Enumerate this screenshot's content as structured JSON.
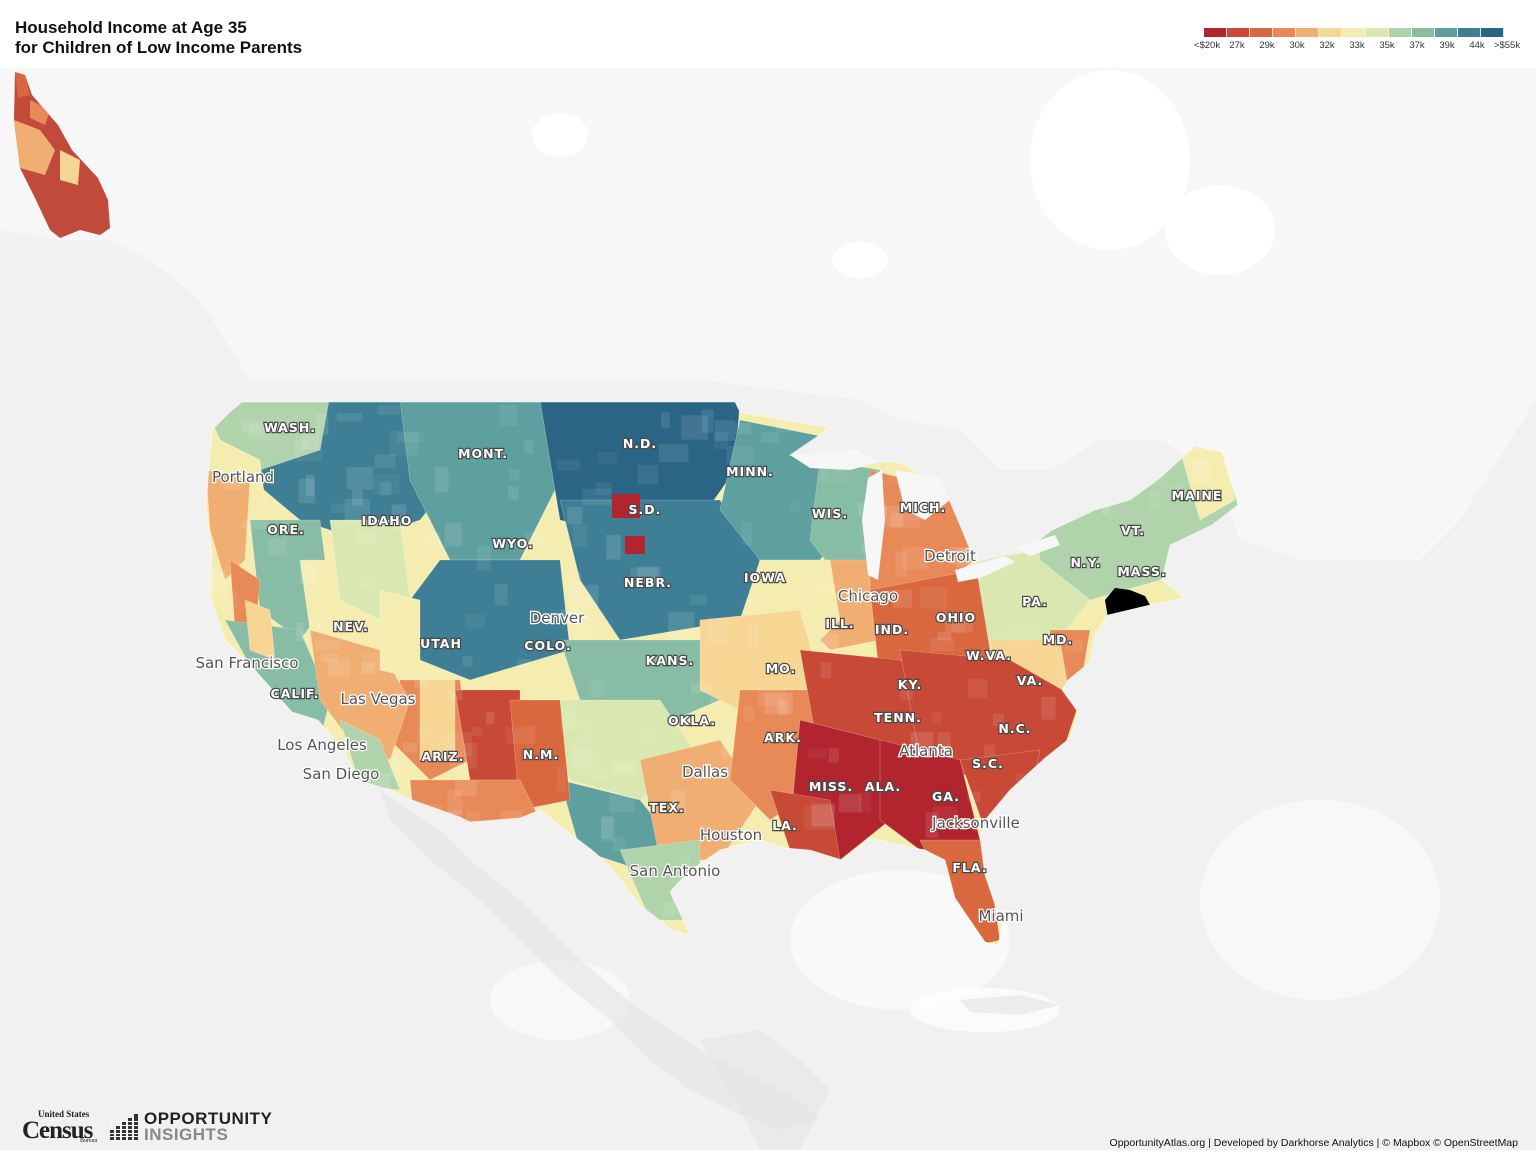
{
  "title": {
    "line1": "Household Income at Age 35",
    "line2": "for Children of Low Income Parents"
  },
  "legend": {
    "colors": [
      "#b2252e",
      "#c84936",
      "#d9683f",
      "#e88a57",
      "#f1ae72",
      "#f7d592",
      "#f5edb0",
      "#d9e8b0",
      "#b0d3ab",
      "#87bca5",
      "#5e9fa0",
      "#3e7f95",
      "#2a6586"
    ],
    "labels": [
      "<$20k",
      "27k",
      "29k",
      "30k",
      "32k",
      "33k",
      "35k",
      "37k",
      "39k",
      "44k",
      ">$55k"
    ]
  },
  "map": {
    "state_labels": [
      "WASH.",
      "MONT.",
      "N.D.",
      "MINN.",
      "WIS.",
      "MICH.",
      "MAINE",
      "VT.",
      "N.Y.",
      "MASS.",
      "ORE.",
      "IDAHO",
      "WYO.",
      "S.D.",
      "NEBR.",
      "IOWA",
      "ILL.",
      "IND.",
      "OHIO",
      "PA.",
      "MD.",
      "NEV.",
      "UTAH",
      "COLO.",
      "KANS.",
      "MO.",
      "KY.",
      "W.VA.",
      "VA.",
      "CALIF.",
      "ARIZ.",
      "N.M.",
      "OKLA.",
      "ARK.",
      "TENN.",
      "N.C.",
      "S.C.",
      "MISS.",
      "ALA.",
      "GA.",
      "TEX.",
      "LA.",
      "FLA."
    ],
    "city_labels": [
      "Portland",
      "San Francisco",
      "Las Vegas",
      "Los Angeles",
      "San Diego",
      "Denver",
      "Chicago",
      "Detroit",
      "Dallas",
      "Houston",
      "San Antonio",
      "Atlanta",
      "Jacksonville",
      "Miami"
    ],
    "highlighted_region": "New York City metro (selected)"
  },
  "logos": {
    "census_top": "United States",
    "census_main": "Census",
    "census_bottom": "Bureau",
    "oi_line1": "OPPORTUNITY",
    "oi_line2": "INSIGHTS"
  },
  "attribution": "OpportunityAtlas.org | Developed by Darkhorse Analytics | © Mapbox © OpenStreetMap"
}
